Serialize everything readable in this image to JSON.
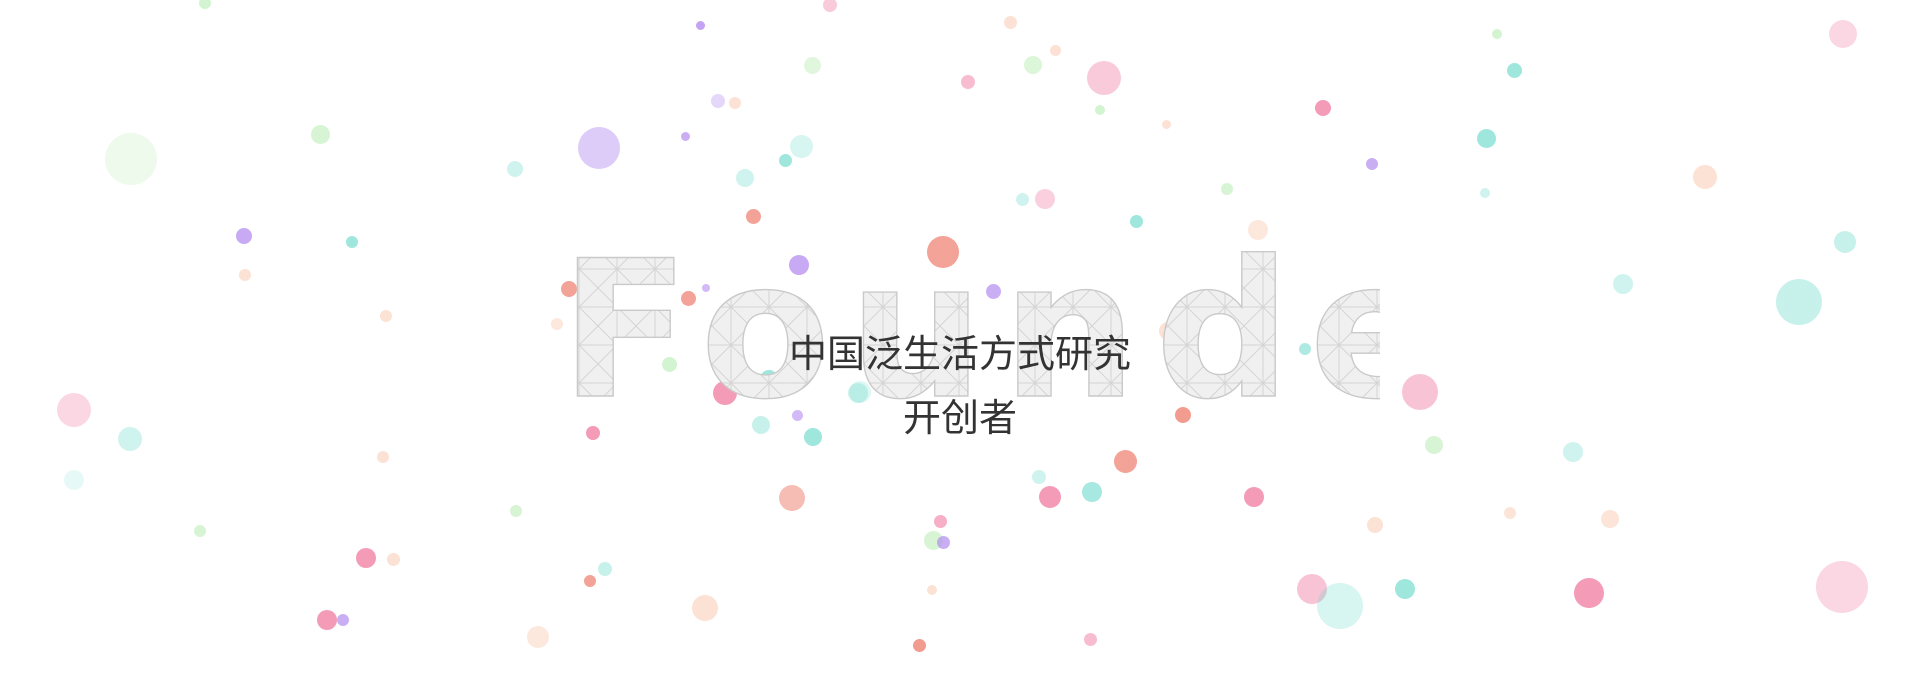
{
  "hero": {
    "wordmark": "Founder",
    "slogan_line1": "中国泛生活方式研究",
    "slogan_line2": "开创者"
  },
  "colors": {
    "background": "#ffffff",
    "slogan_text": "#333333",
    "wordmark_fill": "#f0f0f0",
    "wordmark_stroke": "#c9c9c9",
    "bubble_purple": "#b48cf0",
    "bubble_teal": "#5fd6c6",
    "bubble_pink": "#f07aa0",
    "bubble_coral": "#ee7b6a",
    "bubble_green": "#a6e8a0",
    "bubble_peach": "#f9c4a8"
  }
}
